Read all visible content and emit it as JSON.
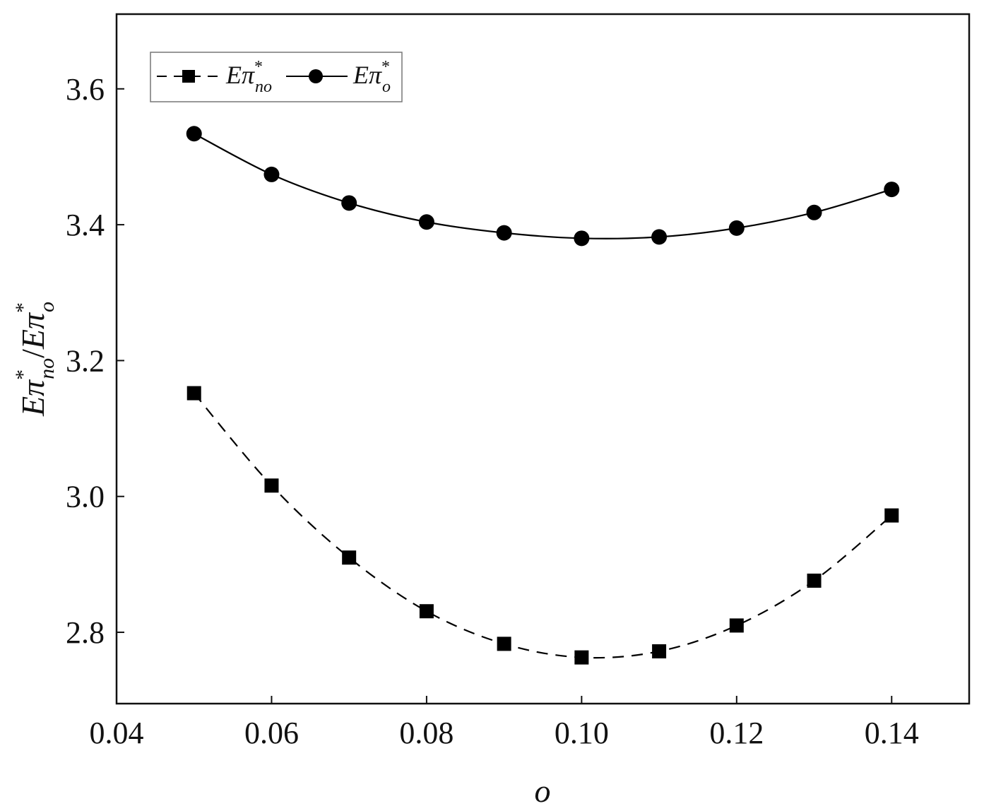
{
  "chart_data": {
    "type": "line",
    "title": "",
    "xlabel": "o",
    "ylabel": "Eπ*no/Eπ*o",
    "xlim": [
      0.04,
      0.15
    ],
    "ylim": [
      2.695,
      3.71
    ],
    "x_ticks": [
      "0.04",
      "0.06",
      "0.08",
      "0.10",
      "0.12",
      "0.14"
    ],
    "y_ticks": [
      "2.8",
      "3.0",
      "3.2",
      "3.4",
      "3.6"
    ],
    "grid": false,
    "legend": {
      "placement": "top-left",
      "boxed": true
    },
    "x": [
      0.05,
      0.06,
      0.07,
      0.08,
      0.09,
      0.1,
      0.11,
      0.12,
      0.13,
      0.14
    ],
    "series": [
      {
        "name": "Eπ*no",
        "marker": "square",
        "line_style": "dashed",
        "color": "#000000",
        "values": [
          3.152,
          3.016,
          2.91,
          2.831,
          2.783,
          2.763,
          2.772,
          2.81,
          2.876,
          2.972
        ]
      },
      {
        "name": "Eπ*o",
        "marker": "circle",
        "line_style": "solid",
        "color": "#000000",
        "values": [
          3.534,
          3.474,
          3.432,
          3.404,
          3.388,
          3.38,
          3.382,
          3.395,
          3.418,
          3.452
        ]
      }
    ]
  }
}
